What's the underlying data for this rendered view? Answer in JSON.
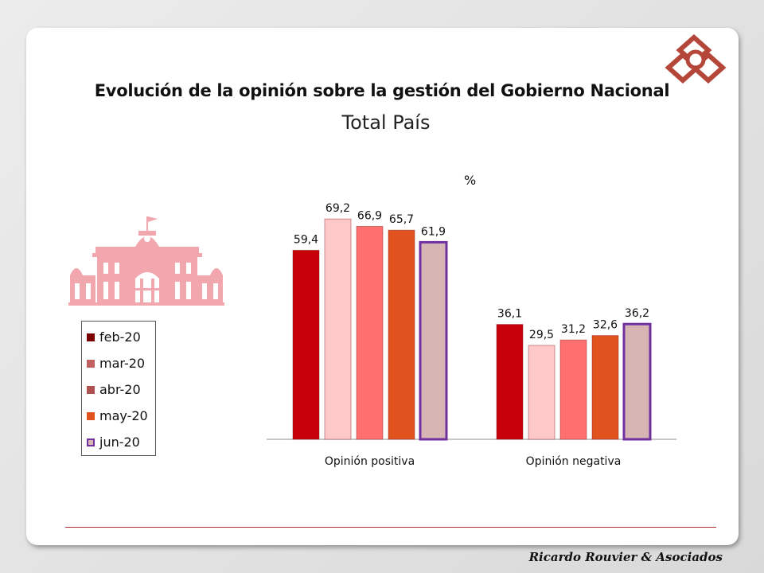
{
  "title": "Evolución de la opinión sobre la gestión del Gobierno Nacional",
  "subtitle": "Total País",
  "unit": "%",
  "brand": "Ricardo Rouvier & Asociados",
  "chart_data": {
    "type": "bar",
    "categories": [
      "Opinión positiva",
      "Opinión negativa"
    ],
    "ylim": [
      0,
      80
    ],
    "grid": false,
    "legend": "left",
    "series": [
      {
        "name": "feb-20",
        "color": "#c8000a",
        "values": [
          59.4,
          36.1
        ],
        "labels": [
          "59,4",
          "36,1"
        ]
      },
      {
        "name": "mar-20",
        "color": "#ffc8c8",
        "values": [
          69.2,
          29.5
        ],
        "labels": [
          "69,2",
          "29,5"
        ]
      },
      {
        "name": "abr-20",
        "color": "#ff6f6f",
        "values": [
          66.9,
          31.2
        ],
        "labels": [
          "66,9",
          "31,2"
        ]
      },
      {
        "name": "may-20",
        "color": "#e0521e",
        "values": [
          65.7,
          32.6
        ],
        "labels": [
          "65,7",
          "32,6"
        ]
      },
      {
        "name": "jun-20",
        "color": "#d8b5b5",
        "values": [
          61.9,
          36.2
        ],
        "labels": [
          "61,9",
          "36,2"
        ]
      }
    ],
    "legend_swatches": [
      "#7a0000",
      "#c06060",
      "#b05050",
      "#e0521e",
      "#d8b5b5"
    ],
    "highlight_series": "jun-20",
    "highlight_color": "#7030a0"
  }
}
